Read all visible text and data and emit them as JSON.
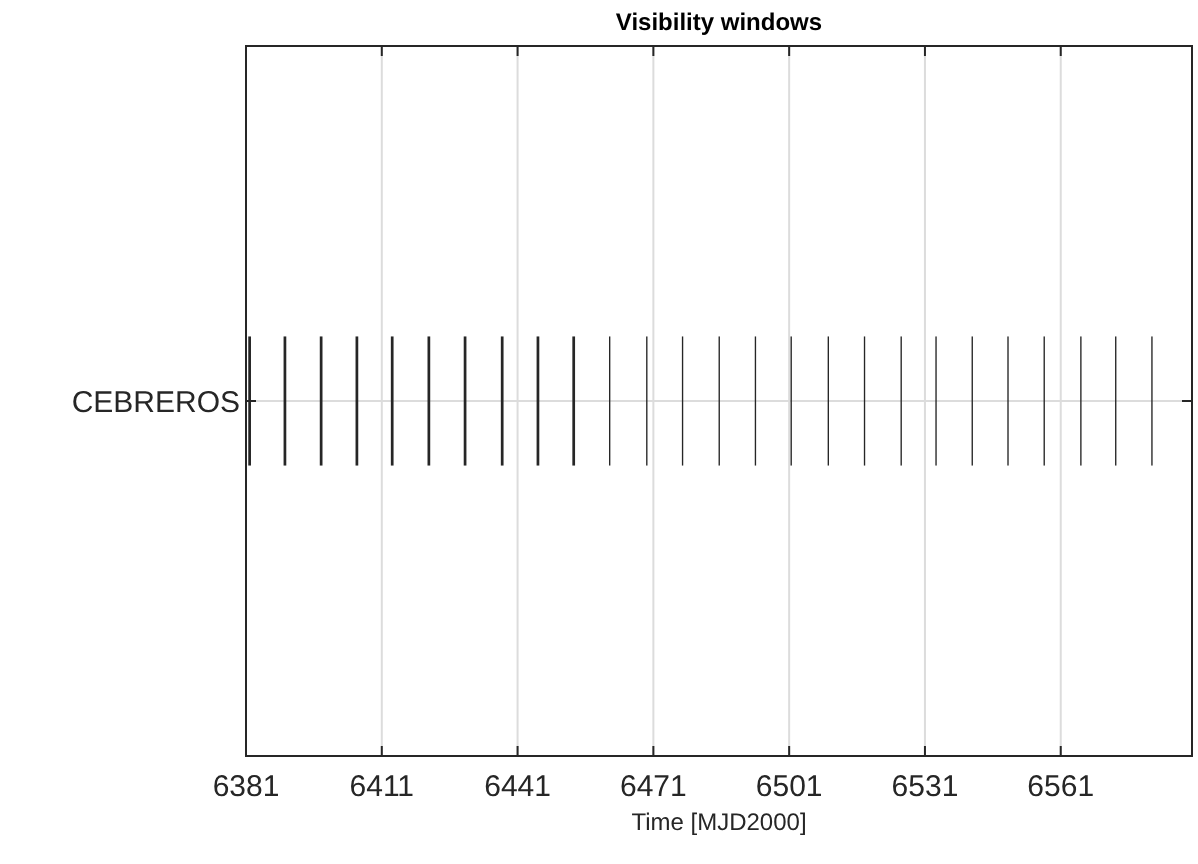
{
  "chart_data": {
    "type": "bar",
    "orientation": "horizontal",
    "title": "Visibility windows",
    "xlabel": "Time [MJD2000]",
    "categories": [
      "CEBREROS"
    ],
    "xlim": [
      6381,
      6590
    ],
    "xticks": [
      6381,
      6411,
      6441,
      6471,
      6501,
      6531,
      6561
    ],
    "grid": true,
    "series": [
      {
        "color": "#262626",
        "base": [
          6381.5
        ],
        "values": [
          0.6
        ]
      },
      {
        "color": "#262626",
        "base": [
          6389.3
        ],
        "values": [
          0.6
        ]
      },
      {
        "color": "#262626",
        "base": [
          6397.3
        ],
        "values": [
          0.6
        ]
      },
      {
        "color": "#262626",
        "base": [
          6405.2
        ],
        "values": [
          0.6
        ]
      },
      {
        "color": "#262626",
        "base": [
          6413
        ],
        "values": [
          0.6
        ]
      },
      {
        "color": "#262626",
        "base": [
          6421.1
        ],
        "values": [
          0.6
        ]
      },
      {
        "color": "#262626",
        "base": [
          6429.1
        ],
        "values": [
          0.6
        ]
      },
      {
        "color": "#262626",
        "base": [
          6437.3
        ],
        "values": [
          0.6
        ]
      },
      {
        "color": "#262626",
        "base": [
          6445.2
        ],
        "values": [
          0.6
        ]
      },
      {
        "color": "#262626",
        "base": [
          6453.1
        ],
        "values": [
          0.6
        ]
      },
      {
        "color": "#262626",
        "base": [
          6461.2
        ],
        "values": [
          0.3
        ]
      },
      {
        "color": "#262626",
        "base": [
          6469.4
        ],
        "values": [
          0.3
        ]
      },
      {
        "color": "#262626",
        "base": [
          6477.3
        ],
        "values": [
          0.3
        ]
      },
      {
        "color": "#262626",
        "base": [
          6485.4
        ],
        "values": [
          0.3
        ]
      },
      {
        "color": "#262626",
        "base": [
          6493.4
        ],
        "values": [
          0.3
        ]
      },
      {
        "color": "#262626",
        "base": [
          6501.3
        ],
        "values": [
          0.3
        ]
      },
      {
        "color": "#262626",
        "base": [
          6509.5
        ],
        "values": [
          0.3
        ]
      },
      {
        "color": "#262626",
        "base": [
          6517.5
        ],
        "values": [
          0.3
        ]
      },
      {
        "color": "#262626",
        "base": [
          6525.6
        ],
        "values": [
          0.3
        ]
      },
      {
        "color": "#262626",
        "base": [
          6533.3
        ],
        "values": [
          0.3
        ]
      },
      {
        "color": "#262626",
        "base": [
          6541.3
        ],
        "values": [
          0.3
        ]
      },
      {
        "color": "#262626",
        "base": [
          6549.2
        ],
        "values": [
          0.3
        ]
      },
      {
        "color": "#262626",
        "base": [
          6557.2
        ],
        "values": [
          0.3
        ]
      },
      {
        "color": "#262626",
        "base": [
          6565.3
        ],
        "values": [
          0.3
        ]
      },
      {
        "color": "#262626",
        "base": [
          6573
        ],
        "values": [
          0.3
        ]
      },
      {
        "color": "#262626",
        "base": [
          6581
        ],
        "values": [
          0.3
        ]
      }
    ]
  }
}
